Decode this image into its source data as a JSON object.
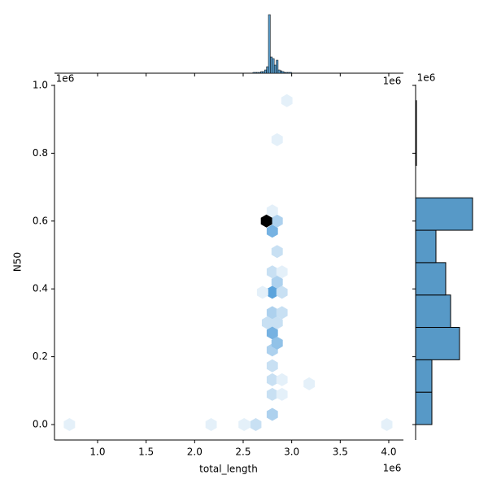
{
  "chart_data": {
    "type": "hexbin",
    "x_label": "total_length",
    "y_label": "N50",
    "x_offset_text": "1e6",
    "y_offset_text": "1e6",
    "top_offset_text": "1e6",
    "right_offset_text": "1e6",
    "xlim": [
      556000,
      4151000
    ],
    "ylim": [
      -45600,
      1002400
    ],
    "xticks": [
      {
        "value": 1000000,
        "label": "1.0"
      },
      {
        "value": 1500000,
        "label": "1.5"
      },
      {
        "value": 2000000,
        "label": "2.0"
      },
      {
        "value": 2500000,
        "label": "2.5"
      },
      {
        "value": 3000000,
        "label": "3.0"
      },
      {
        "value": 3500000,
        "label": "3.5"
      },
      {
        "value": 4000000,
        "label": "4.0"
      }
    ],
    "yticks": [
      {
        "value": 0,
        "label": "0.0"
      },
      {
        "value": 200000,
        "label": "0.2"
      },
      {
        "value": 400000,
        "label": "0.4"
      },
      {
        "value": 600000,
        "label": "0.6"
      },
      {
        "value": 800000,
        "label": "0.8"
      },
      {
        "value": 1000000,
        "label": "1.0"
      }
    ],
    "color": "#5799c7",
    "light_color": "#ffffff",
    "mid_color": "#5aa3dc",
    "dark_color": "#000000",
    "hexbins": {
      "x": [
        710000,
        2170000,
        2510000,
        2630000,
        3980000,
        2800000,
        2800000,
        2900000,
        2800000,
        2900000,
        3180000,
        2800000,
        2800000,
        2850000,
        2800000,
        2850000,
        2750000,
        2800000,
        2900000,
        2800000,
        2900000,
        2700000,
        2850000,
        2800000,
        2900000,
        2850000,
        2800000,
        2850000,
        2740000,
        2800000,
        2850000,
        2950000
      ],
      "y": [
        0,
        0,
        0,
        0,
        0,
        30000,
        89000,
        89000,
        132000,
        132000,
        120000,
        173000,
        220000,
        240000,
        270000,
        300000,
        300000,
        330000,
        330000,
        390000,
        390000,
        390000,
        420000,
        450000,
        450000,
        510000,
        570000,
        600000,
        600000,
        630000,
        840000,
        955000
      ],
      "counts": [
        1,
        1,
        1,
        2,
        1,
        3,
        2,
        1,
        2,
        1,
        1,
        2,
        3,
        4,
        5,
        2,
        2,
        3,
        2,
        6,
        2,
        1,
        3,
        2,
        1,
        2,
        5,
        3,
        20,
        1,
        1,
        1
      ]
    },
    "top_hist": {
      "bins": [
        2600000,
        2620000,
        2640000,
        2660000,
        2680000,
        2700000,
        2720000,
        2740000,
        2760000,
        2780000,
        2800000,
        2820000,
        2840000,
        2860000,
        2880000,
        2900000,
        2920000,
        2940000,
        2960000,
        2980000,
        3000000
      ],
      "counts": [
        1,
        1,
        1,
        1,
        2,
        2,
        4,
        8,
        72,
        20,
        18,
        10,
        16,
        4,
        3,
        2,
        1,
        1,
        1,
        1
      ],
      "lim": [
        0,
        76
      ]
    },
    "right_hist": {
      "bins": [
        0,
        95500,
        191000,
        286500,
        382000,
        477500,
        573000,
        668500,
        764000,
        859500,
        955000
      ],
      "counts": [
        20,
        20,
        54,
        43,
        37,
        25,
        70,
        0,
        1,
        1
      ],
      "lim": [
        0,
        74
      ]
    }
  }
}
